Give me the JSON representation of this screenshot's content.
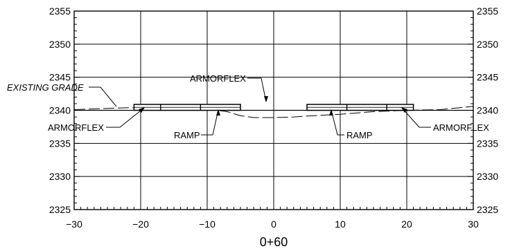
{
  "drawing": {
    "station_label": "0+60",
    "x_axis": {
      "min": -30,
      "max": 30,
      "major_step": 10,
      "minor_step": 1
    },
    "y_axis": {
      "min": 2325,
      "max": 2355,
      "major_step": 5,
      "minor_step": 1
    },
    "x_ticks": [
      "−30",
      "−20",
      "−10",
      "0",
      "10",
      "20",
      "30"
    ],
    "y_ticks": [
      "2325",
      "2330",
      "2335",
      "2340",
      "2345",
      "2350",
      "2355"
    ],
    "callouts": {
      "existing_grade": "EXISTING GRADE",
      "armorflex_top": "ARMORFLEX",
      "armorflex_left": "ARMORFLEX",
      "armorflex_right": "ARMORFLEX",
      "ramp_left": "RAMP",
      "ramp_right": "RAMP"
    },
    "existing_grade_profile": [
      [
        -30,
        2340.1
      ],
      [
        -22,
        2340.4
      ],
      [
        -15,
        2340.4
      ],
      [
        -10,
        2340.2
      ],
      [
        -7,
        2339.8
      ],
      [
        -5,
        2339.2
      ],
      [
        -3,
        2338.9
      ],
      [
        0,
        2338.9
      ],
      [
        3,
        2339.0
      ],
      [
        6,
        2339.2
      ],
      [
        10,
        2339.4
      ],
      [
        15,
        2339.8
      ],
      [
        20,
        2340.0
      ],
      [
        25,
        2340.1
      ],
      [
        30,
        2340.6
      ]
    ],
    "finished_grade_profile": [
      [
        -30,
        2340
      ],
      [
        30,
        2340
      ]
    ],
    "armorflex_mats": [
      {
        "x_from": -21,
        "x_to": -5,
        "joints": [
          -17,
          -11
        ]
      },
      {
        "x_from": 5,
        "x_to": 21,
        "joints": [
          11,
          17
        ]
      }
    ]
  }
}
